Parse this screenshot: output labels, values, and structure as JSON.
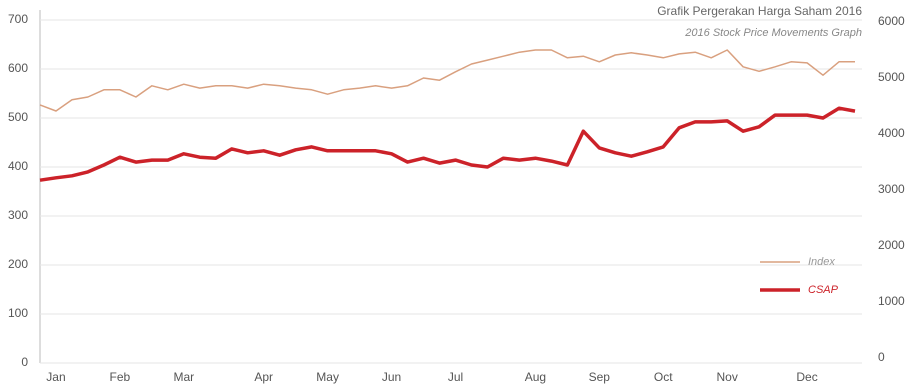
{
  "chart_data": {
    "type": "line",
    "title": "Grafik Pergerakan Harga Saham 2016",
    "subtitle": "2016 Stock Price Movements Graph",
    "categories": [
      null,
      "Jan",
      null,
      null,
      null,
      "Feb",
      null,
      null,
      null,
      "Mar",
      null,
      null,
      null,
      null,
      "Apr",
      null,
      null,
      null,
      "May",
      null,
      null,
      null,
      "Jun",
      null,
      null,
      null,
      "Jul",
      null,
      null,
      null,
      null,
      "Aug",
      null,
      null,
      null,
      "Sep",
      null,
      null,
      null,
      "Oct",
      null,
      null,
      null,
      "Nov",
      null,
      null,
      null,
      null,
      "Dec",
      null,
      null,
      null
    ],
    "series": [
      {
        "name": "Index",
        "color": "#d9a07f",
        "axis": "y2",
        "values": [
          4520,
          4410,
          4610,
          4660,
          4790,
          4790,
          4660,
          4860,
          4790,
          4890,
          4820,
          4860,
          4860,
          4820,
          4890,
          4860,
          4820,
          4790,
          4710,
          4790,
          4820,
          4860,
          4820,
          4860,
          5000,
          4960,
          5110,
          5250,
          5320,
          5390,
          5460,
          5500,
          5500,
          5360,
          5390,
          5290,
          5410,
          5450,
          5410,
          5360,
          5430,
          5460,
          5360,
          5500,
          5200,
          5120,
          5200,
          5290,
          5270,
          5050,
          5290,
          5290
        ]
      },
      {
        "name": "CSAP",
        "color": "#cc2229",
        "values": [
          373,
          378,
          382,
          390,
          404,
          420,
          410,
          414,
          414,
          427,
          420,
          418,
          437,
          429,
          433,
          424,
          435,
          441,
          433,
          433,
          433,
          433,
          427,
          410,
          418,
          408,
          414,
          404,
          400,
          418,
          414,
          418,
          412,
          404,
          473,
          439,
          429,
          422,
          431,
          441,
          480,
          492,
          492,
          494,
          473,
          482,
          506,
          506,
          506,
          500,
          520,
          514
        ]
      }
    ],
    "ylim": [
      0,
      700
    ],
    "yticks": [
      0,
      100,
      200,
      300,
      400,
      500,
      600,
      700
    ],
    "y2lim": [
      0,
      6000
    ],
    "y2ticks": [
      0,
      1000,
      2000,
      3000,
      4000,
      5000,
      6000
    ],
    "grid": true,
    "legend": "lower right"
  }
}
